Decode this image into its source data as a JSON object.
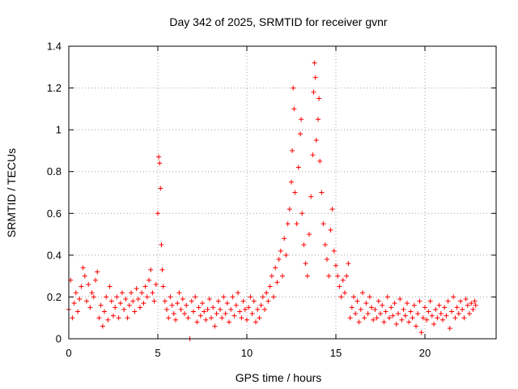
{
  "chart_data": {
    "type": "scatter",
    "title": "Day 342 of 2025, SRMTID for receiver gvnr",
    "xlabel": "GPS time / hours",
    "ylabel": "SRMTID / TECUs",
    "xlim": [
      0,
      24
    ],
    "ylim": [
      0,
      1.4
    ],
    "xticks": [
      0,
      5,
      10,
      15,
      20
    ],
    "xtick_labels": [
      "0",
      "5",
      "10",
      "15",
      "20"
    ],
    "yticks": [
      0,
      0.2,
      0.4,
      0.6,
      0.8,
      1.0,
      1.2,
      1.4
    ],
    "ytick_labels": [
      "0",
      "0.2",
      "0.4",
      "0.6",
      "0.8",
      "1",
      "1.2",
      "1.4"
    ],
    "grid": true,
    "marker": "+",
    "color": "#ff0000",
    "series": [
      {
        "name": "gvnr",
        "points": [
          [
            0.0,
            0.14
          ],
          [
            0.1,
            0.28
          ],
          [
            0.2,
            0.1
          ],
          [
            0.3,
            0.17
          ],
          [
            0.4,
            0.22
          ],
          [
            0.5,
            0.13
          ],
          [
            0.6,
            0.19
          ],
          [
            0.7,
            0.25
          ],
          [
            0.8,
            0.34
          ],
          [
            0.9,
            0.3
          ],
          [
            1.0,
            0.18
          ],
          [
            1.1,
            0.26
          ],
          [
            1.2,
            0.15
          ],
          [
            1.3,
            0.22
          ],
          [
            1.4,
            0.2
          ],
          [
            1.5,
            0.28
          ],
          [
            1.6,
            0.32
          ],
          [
            1.7,
            0.1
          ],
          [
            1.8,
            0.16
          ],
          [
            1.9,
            0.06
          ],
          [
            2.0,
            0.13
          ],
          [
            2.1,
            0.2
          ],
          [
            2.2,
            0.09
          ],
          [
            2.3,
            0.25
          ],
          [
            2.4,
            0.18
          ],
          [
            2.5,
            0.11
          ],
          [
            2.6,
            0.15
          ],
          [
            2.7,
            0.2
          ],
          [
            2.8,
            0.1
          ],
          [
            2.9,
            0.17
          ],
          [
            3.0,
            0.22
          ],
          [
            3.1,
            0.14
          ],
          [
            3.2,
            0.19
          ],
          [
            3.3,
            0.1
          ],
          [
            3.4,
            0.16
          ],
          [
            3.5,
            0.22
          ],
          [
            3.6,
            0.18
          ],
          [
            3.7,
            0.13
          ],
          [
            3.8,
            0.24
          ],
          [
            3.9,
            0.19
          ],
          [
            4.0,
            0.15
          ],
          [
            4.1,
            0.22
          ],
          [
            4.2,
            0.17
          ],
          [
            4.3,
            0.25
          ],
          [
            4.4,
            0.2
          ],
          [
            4.5,
            0.28
          ],
          [
            4.6,
            0.33
          ],
          [
            4.7,
            0.22
          ],
          [
            4.8,
            0.18
          ],
          [
            4.9,
            0.26
          ],
          [
            5.0,
            0.6
          ],
          [
            5.05,
            0.87
          ],
          [
            5.1,
            0.84
          ],
          [
            5.15,
            0.72
          ],
          [
            5.2,
            0.45
          ],
          [
            5.25,
            0.33
          ],
          [
            5.3,
            0.25
          ],
          [
            5.4,
            0.18
          ],
          [
            5.5,
            0.14
          ],
          [
            5.6,
            0.1
          ],
          [
            5.7,
            0.2
          ],
          [
            5.8,
            0.16
          ],
          [
            5.9,
            0.12
          ],
          [
            6.0,
            0.09
          ],
          [
            6.1,
            0.17
          ],
          [
            6.2,
            0.22
          ],
          [
            6.3,
            0.14
          ],
          [
            6.4,
            0.19
          ],
          [
            6.5,
            0.12
          ],
          [
            6.6,
            0.16
          ],
          [
            6.7,
            0.1
          ],
          [
            6.8,
            0.0
          ],
          [
            6.9,
            0.18
          ],
          [
            7.0,
            0.13
          ],
          [
            7.1,
            0.2
          ],
          [
            7.2,
            0.08
          ],
          [
            7.3,
            0.15
          ],
          [
            7.4,
            0.11
          ],
          [
            7.5,
            0.17
          ],
          [
            7.6,
            0.13
          ],
          [
            7.7,
            0.09
          ],
          [
            7.8,
            0.14
          ],
          [
            7.9,
            0.19
          ],
          [
            8.0,
            0.1
          ],
          [
            8.1,
            0.15
          ],
          [
            8.2,
            0.06
          ],
          [
            8.3,
            0.12
          ],
          [
            8.4,
            0.18
          ],
          [
            8.5,
            0.14
          ],
          [
            8.6,
            0.1
          ],
          [
            8.7,
            0.2
          ],
          [
            8.8,
            0.12
          ],
          [
            8.9,
            0.17
          ],
          [
            9.0,
            0.08
          ],
          [
            9.1,
            0.14
          ],
          [
            9.2,
            0.2
          ],
          [
            9.3,
            0.11
          ],
          [
            9.4,
            0.16
          ],
          [
            9.5,
            0.22
          ],
          [
            9.6,
            0.13
          ],
          [
            9.7,
            0.1
          ],
          [
            9.8,
            0.18
          ],
          [
            9.9,
            0.14
          ],
          [
            10.0,
            0.09
          ],
          [
            10.1,
            0.15
          ],
          [
            10.2,
            0.2
          ],
          [
            10.3,
            0.12
          ],
          [
            10.4,
            0.18
          ],
          [
            10.5,
            0.08
          ],
          [
            10.6,
            0.14
          ],
          [
            10.7,
            0.1
          ],
          [
            10.8,
            0.16
          ],
          [
            10.9,
            0.2
          ],
          [
            11.0,
            0.14
          ],
          [
            11.1,
            0.22
          ],
          [
            11.2,
            0.18
          ],
          [
            11.3,
            0.25
          ],
          [
            11.4,
            0.3
          ],
          [
            11.5,
            0.2
          ],
          [
            11.6,
            0.34
          ],
          [
            11.7,
            0.27
          ],
          [
            11.8,
            0.38
          ],
          [
            11.9,
            0.42
          ],
          [
            12.0,
            0.3
          ],
          [
            12.1,
            0.48
          ],
          [
            12.2,
            0.4
          ],
          [
            12.3,
            0.55
          ],
          [
            12.4,
            0.62
          ],
          [
            12.5,
            0.75
          ],
          [
            12.55,
            0.9
          ],
          [
            12.6,
            1.2
          ],
          [
            12.65,
            1.1
          ],
          [
            12.7,
            0.7
          ],
          [
            12.8,
            0.55
          ],
          [
            12.9,
            0.82
          ],
          [
            13.0,
            0.98
          ],
          [
            13.05,
            1.05
          ],
          [
            13.1,
            0.6
          ],
          [
            13.2,
            0.45
          ],
          [
            13.3,
            0.36
          ],
          [
            13.4,
            0.3
          ],
          [
            13.5,
            0.5
          ],
          [
            13.6,
            0.68
          ],
          [
            13.7,
            0.88
          ],
          [
            13.75,
            1.18
          ],
          [
            13.8,
            1.32
          ],
          [
            13.85,
            1.25
          ],
          [
            13.9,
            0.95
          ],
          [
            14.0,
            1.05
          ],
          [
            14.05,
            1.15
          ],
          [
            14.1,
            0.85
          ],
          [
            14.2,
            0.7
          ],
          [
            14.3,
            0.55
          ],
          [
            14.4,
            0.45
          ],
          [
            14.5,
            0.38
          ],
          [
            14.6,
            0.3
          ],
          [
            14.7,
            0.52
          ],
          [
            14.8,
            0.62
          ],
          [
            14.9,
            0.42
          ],
          [
            15.0,
            0.35
          ],
          [
            15.1,
            0.3
          ],
          [
            15.2,
            0.25
          ],
          [
            15.3,
            0.2
          ],
          [
            15.4,
            0.28
          ],
          [
            15.5,
            0.22
          ],
          [
            15.6,
            0.3
          ],
          [
            15.7,
            0.36
          ],
          [
            15.8,
            0.1
          ],
          [
            15.9,
            0.15
          ],
          [
            16.0,
            0.2
          ],
          [
            16.1,
            0.12
          ],
          [
            16.2,
            0.18
          ],
          [
            16.3,
            0.08
          ],
          [
            16.4,
            0.14
          ],
          [
            16.5,
            0.22
          ],
          [
            16.6,
            0.1
          ],
          [
            16.7,
            0.17
          ],
          [
            16.8,
            0.12
          ],
          [
            16.9,
            0.2
          ],
          [
            17.0,
            0.15
          ],
          [
            17.1,
            0.09
          ],
          [
            17.2,
            0.14
          ],
          [
            17.3,
            0.1
          ],
          [
            17.4,
            0.18
          ],
          [
            17.5,
            0.12
          ],
          [
            17.6,
            0.16
          ],
          [
            17.7,
            0.08
          ],
          [
            17.8,
            0.13
          ],
          [
            17.9,
            0.2
          ],
          [
            18.0,
            0.1
          ],
          [
            18.1,
            0.15
          ],
          [
            18.2,
            0.11
          ],
          [
            18.3,
            0.17
          ],
          [
            18.4,
            0.07
          ],
          [
            18.5,
            0.12
          ],
          [
            18.6,
            0.19
          ],
          [
            18.7,
            0.09
          ],
          [
            18.8,
            0.14
          ],
          [
            18.9,
            0.11
          ],
          [
            19.0,
            0.17
          ],
          [
            19.1,
            0.08
          ],
          [
            19.2,
            0.13
          ],
          [
            19.3,
            0.1
          ],
          [
            19.4,
            0.16
          ],
          [
            19.5,
            0.06
          ],
          [
            19.6,
            0.12
          ],
          [
            19.7,
            0.18
          ],
          [
            19.8,
            0.03
          ],
          [
            19.9,
            0.1
          ],
          [
            20.0,
            0.15
          ],
          [
            20.1,
            0.09
          ],
          [
            20.2,
            0.13
          ],
          [
            20.3,
            0.18
          ],
          [
            20.4,
            0.11
          ],
          [
            20.5,
            0.07
          ],
          [
            20.6,
            0.14
          ],
          [
            20.7,
            0.1
          ],
          [
            20.8,
            0.16
          ],
          [
            20.9,
            0.12
          ],
          [
            21.0,
            0.09
          ],
          [
            21.1,
            0.15
          ],
          [
            21.2,
            0.11
          ],
          [
            21.3,
            0.18
          ],
          [
            21.4,
            0.05
          ],
          [
            21.5,
            0.13
          ],
          [
            21.6,
            0.2
          ],
          [
            21.7,
            0.1
          ],
          [
            21.8,
            0.15
          ],
          [
            21.9,
            0.12
          ],
          [
            22.0,
            0.18
          ],
          [
            22.1,
            0.14
          ],
          [
            22.2,
            0.1
          ],
          [
            22.3,
            0.19
          ],
          [
            22.4,
            0.16
          ],
          [
            22.5,
            0.12
          ],
          [
            22.6,
            0.17
          ],
          [
            22.7,
            0.14
          ],
          [
            22.8,
            0.18
          ],
          [
            22.85,
            0.16
          ]
        ]
      }
    ]
  }
}
